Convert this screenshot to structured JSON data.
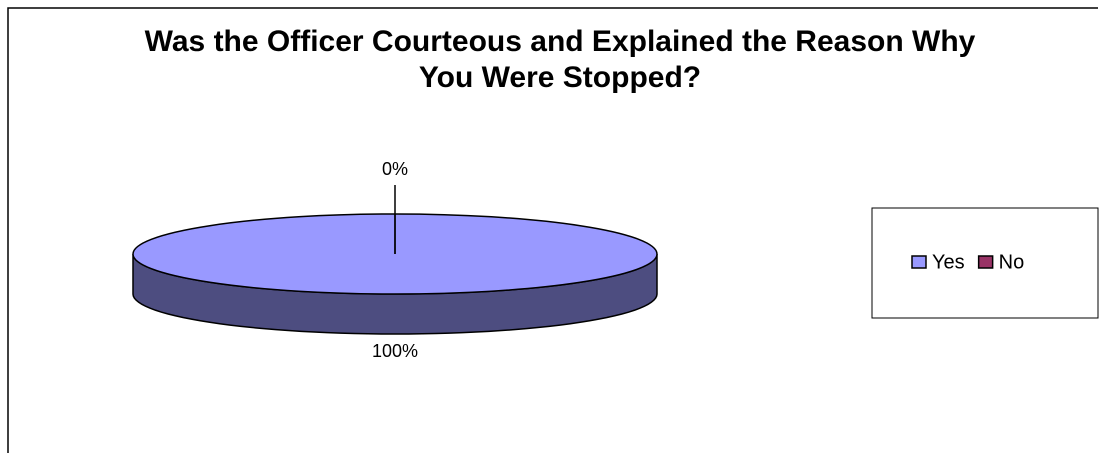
{
  "chart_data": {
    "type": "pie",
    "title": "Was the Officer Courteous and Explained the Reason Why You Were Stopped?",
    "categories": [
      "Yes",
      "No"
    ],
    "values": [
      100,
      0
    ],
    "value_labels": [
      "100%",
      "0%"
    ],
    "colors": [
      "#9999ff",
      "#993366"
    ],
    "legend": "right"
  }
}
